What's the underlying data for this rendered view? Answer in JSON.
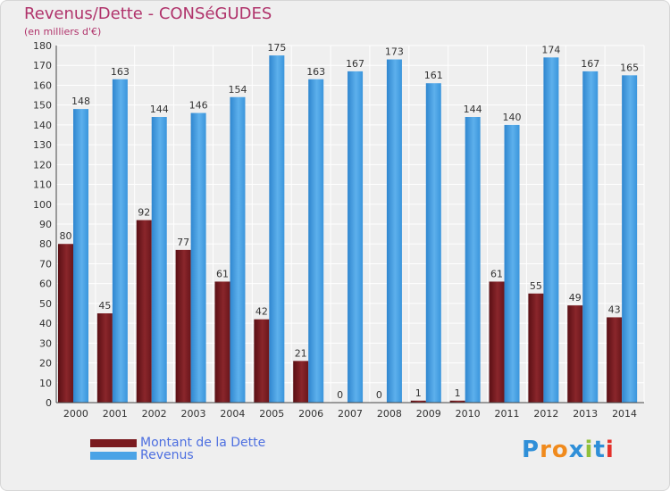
{
  "header": {
    "title": "Revenus/Dette - CONSéGUDES",
    "subtitle": "(en milliers d'€)"
  },
  "legend": {
    "items": [
      {
        "label": "Montant de la Dette",
        "color": "#7a1a1f"
      },
      {
        "label": "Revenus",
        "color": "#4aa3e6"
      }
    ]
  },
  "logo": {
    "letters": [
      "P",
      "r",
      "o",
      "x",
      "i",
      "t",
      "i"
    ],
    "colors": [
      "#2f8fd8",
      "#f08a1c",
      "#f08a1c",
      "#2f8fd8",
      "#90c03a",
      "#2f8fd8",
      "#e4312b"
    ]
  },
  "colors": {
    "debt": "#7a1a1f",
    "revenue": "#4aa3e6",
    "axis_text": "#333333",
    "grid": "#ffffff"
  },
  "chart_data": {
    "type": "bar",
    "categories": [
      "2000",
      "2001",
      "2002",
      "2003",
      "2004",
      "2005",
      "2006",
      "2007",
      "2008",
      "2009",
      "2010",
      "2011",
      "2012",
      "2013",
      "2014"
    ],
    "series": [
      {
        "name": "Montant de la Dette",
        "values": [
          80,
          45,
          92,
          77,
          61,
          42,
          21,
          0,
          0,
          1,
          1,
          61,
          55,
          49,
          43
        ]
      },
      {
        "name": "Revenus",
        "values": [
          148,
          163,
          144,
          146,
          154,
          175,
          163,
          167,
          173,
          161,
          144,
          140,
          174,
          167,
          165
        ]
      }
    ],
    "ylim": [
      0,
      180
    ],
    "yticks": [
      0,
      10,
      20,
      30,
      40,
      50,
      60,
      70,
      80,
      90,
      100,
      110,
      120,
      130,
      140,
      150,
      160,
      170,
      180
    ],
    "grid": true,
    "legend_position": "bottom-left"
  }
}
